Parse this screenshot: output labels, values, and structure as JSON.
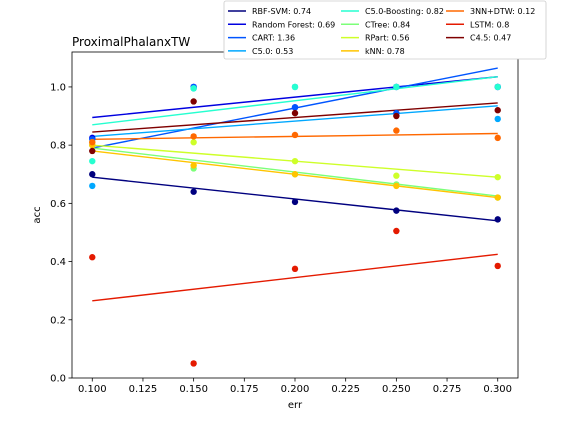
{
  "chart_data": {
    "type": "scatter",
    "title": "ProximalPhalanxTW",
    "xlabel": "err",
    "ylabel": "acc",
    "xlim": [
      0.09,
      0.31
    ],
    "ylim": [
      0.0,
      1.12
    ],
    "x_ticks": [
      "0.100",
      "0.125",
      "0.150",
      "0.175",
      "0.200",
      "0.225",
      "0.250",
      "0.275",
      "0.300"
    ],
    "y_ticks": [
      "0.0",
      "0.2",
      "0.4",
      "0.6",
      "0.8",
      "1.0"
    ],
    "grid": false,
    "legend_position": "top-right",
    "legend_columns": 3,
    "x": [
      0.1,
      0.15,
      0.2,
      0.25,
      0.3
    ],
    "series": [
      {
        "label": "RBF-SVM: 0.74",
        "color": "#00007f",
        "values": [
          0.7,
          0.64,
          0.605,
          0.575,
          0.545
        ],
        "fit": [
          0.69,
          0.54
        ]
      },
      {
        "label": "Random Forest: 0.69",
        "color": "#0000e0",
        "values": [
          0.825,
          1.0,
          0.93,
          1.0,
          1.0
        ],
        "fit": [
          0.895,
          1.035
        ]
      },
      {
        "label": "CART: 1.36",
        "color": "#0055ff",
        "values": [
          0.82,
          1.0,
          0.93,
          0.91,
          1.0
        ],
        "fit": [
          0.79,
          1.065
        ]
      },
      {
        "label": "C5.0: 0.53",
        "color": "#00a8ff",
        "values": [
          0.66,
          0.995,
          1.0,
          1.0,
          0.89
        ],
        "fit": [
          0.83,
          0.935
        ]
      },
      {
        "label": "C5.0-Boosting: 0.82",
        "color": "#26ffd0",
        "values": [
          0.745,
          0.995,
          1.0,
          1.0,
          1.0
        ],
        "fit": [
          0.87,
          1.035
        ]
      },
      {
        "label": "CTree: 0.84",
        "color": "#7cff79",
        "values": [
          0.8,
          0.72,
          0.7,
          0.665,
          0.62
        ],
        "fit": [
          0.79,
          0.625
        ]
      },
      {
        "label": "RPart: 0.56",
        "color": "#ceff29",
        "values": [
          0.81,
          0.81,
          0.745,
          0.695,
          0.69
        ],
        "fit": [
          0.8,
          0.69
        ]
      },
      {
        "label": "kNN: 0.78",
        "color": "#ffc400",
        "values": [
          0.8,
          0.73,
          0.7,
          0.66,
          0.62
        ],
        "fit": [
          0.78,
          0.62
        ]
      },
      {
        "label": "3NN+DTW: 0.12",
        "color": "#ff6800",
        "values": [
          0.81,
          0.83,
          0.835,
          0.85,
          0.825
        ],
        "fit": [
          0.82,
          0.84
        ]
      },
      {
        "label": "LSTM: 0.8",
        "color": "#e41a00",
        "values": [
          0.415,
          0.05,
          0.375,
          0.505,
          0.385
        ],
        "fit": [
          0.265,
          0.425
        ]
      },
      {
        "label": "C4.5: 0.47",
        "color": "#7f0000",
        "values": [
          0.78,
          0.95,
          0.91,
          0.9,
          0.92
        ],
        "fit": [
          0.845,
          0.945
        ]
      }
    ]
  }
}
